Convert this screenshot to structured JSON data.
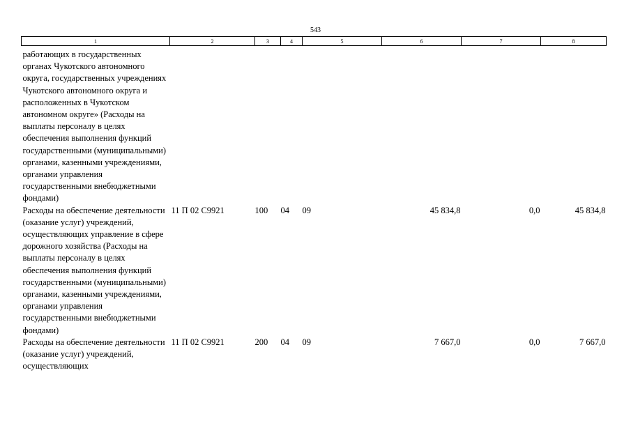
{
  "page_number": "543",
  "header": [
    "1",
    "2",
    "3",
    "4",
    "5",
    "6",
    "7",
    "8"
  ],
  "rows": [
    {
      "name": "работающих в государственных органах Чукотского автономного округа, государственных учреждениях Чукотского автономного округа и расположенных в Чукотском автономном округе» (Расходы на выплаты персоналу в целях обеспечения выполнения функций государственными (муниципальными) органами, казенными учреждениями, органами управления государственными внебюджетными фондами)",
      "code": "",
      "kvr": "",
      "rz": "",
      "pr": "",
      "v6": "",
      "v7": "",
      "v8": ""
    },
    {
      "name": "Расходы на обеспечение деятельности (оказание услуг) учреждений, осуществляющих управление в сфере дорожного хозяйства (Расходы на выплаты персоналу в целях обеспечения выполнения функций государственными (муниципальными) органами, казенными учреждениями, органами управления государственными внебюджетными фондами)",
      "code": "11 П 02 С9921",
      "kvr": "100",
      "rz": "04",
      "pr": "09",
      "v6": "45 834,8",
      "v7": "0,0",
      "v8": "45 834,8"
    },
    {
      "name": "Расходы на обеспечение деятельности (оказание услуг) учреждений, осуществляющих",
      "code": "11 П 02 С9921",
      "kvr": "200",
      "rz": "04",
      "pr": "09",
      "v6": "7 667,0",
      "v7": "0,0",
      "v8": "7 667,0"
    }
  ]
}
